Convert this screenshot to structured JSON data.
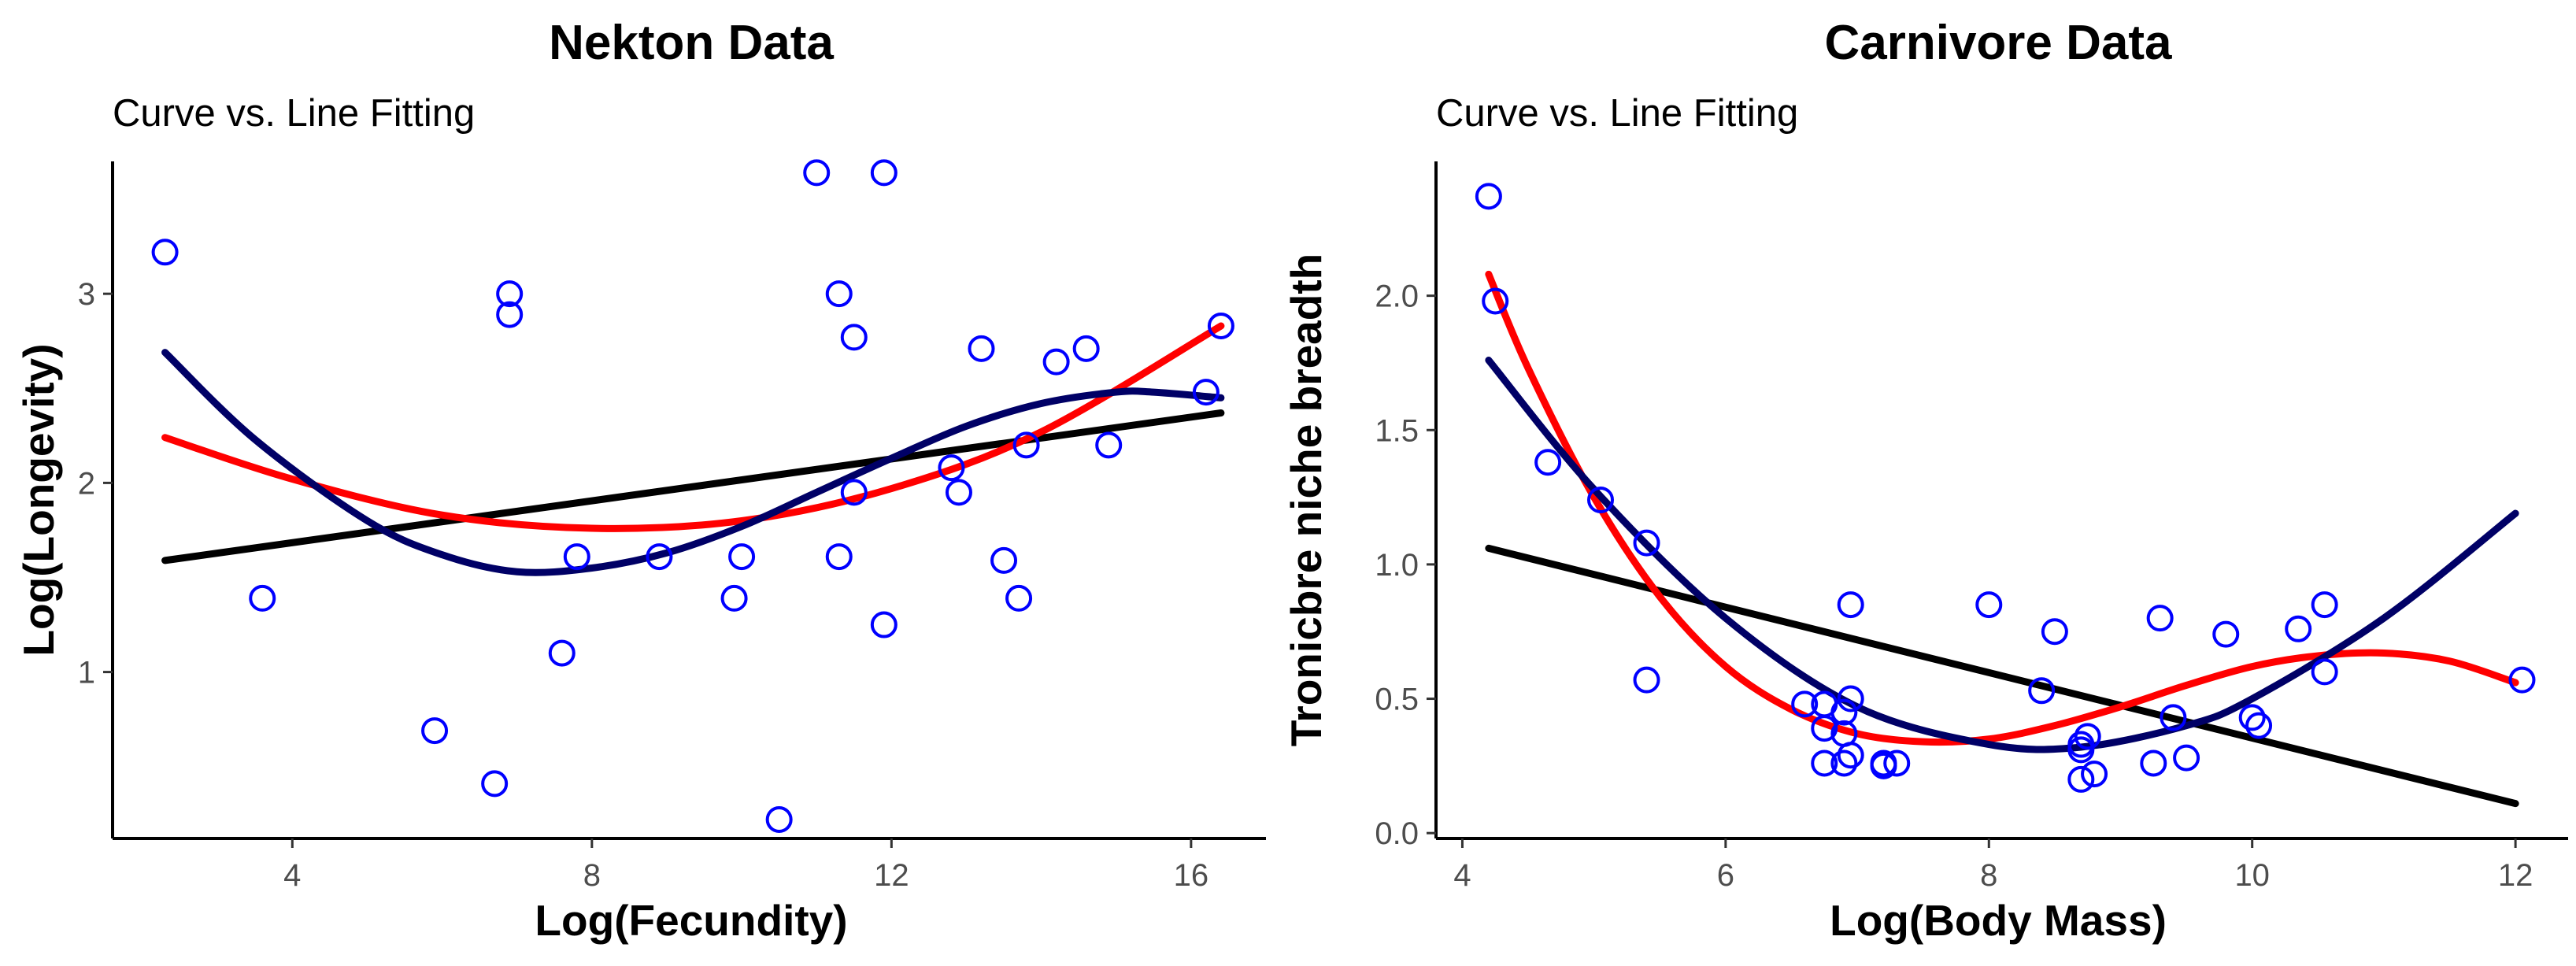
{
  "colors": {
    "points": "#0000ff",
    "linear_fit": "#000000",
    "curve_fit_red": "#ff0000",
    "curve_fit_navy": "#000066"
  },
  "chart_data": [
    {
      "type": "scatter",
      "title": "Nekton Data",
      "subtitle": "Curve vs. Line Fitting",
      "xlabel": "Log(Fecundity)",
      "ylabel": "Log(Longevity)",
      "xlim": [
        1.6,
        17.0
      ],
      "ylim": [
        0.12,
        3.7
      ],
      "xticks": [
        4,
        8,
        12,
        16
      ],
      "yticks": [
        1,
        2,
        3
      ],
      "grid": false,
      "points": {
        "x": [
          2.3,
          3.6,
          5.9,
          6.7,
          6.9,
          6.9,
          7.6,
          7.8,
          8.9,
          9.9,
          10.0,
          10.5,
          11.0,
          11.3,
          11.3,
          11.5,
          11.5,
          11.9,
          11.9,
          12.8,
          12.9,
          13.2,
          13.5,
          13.7,
          13.8,
          14.2,
          14.6,
          14.9,
          16.2,
          16.4
        ],
        "y": [
          3.22,
          1.39,
          0.69,
          0.41,
          3.0,
          2.89,
          1.1,
          1.61,
          1.61,
          1.39,
          1.61,
          0.22,
          3.64,
          3.0,
          1.61,
          1.95,
          2.77,
          3.64,
          1.25,
          2.08,
          1.95,
          2.71,
          1.59,
          1.39,
          2.2,
          2.64,
          2.71,
          2.2,
          2.48,
          2.83
        ]
      },
      "fits": [
        {
          "kind": "linear",
          "color": "#000000",
          "x": [
            2.3,
            16.4
          ],
          "y": [
            1.59,
            2.37
          ]
        },
        {
          "kind": "quadratic",
          "color": "#ff0000",
          "x": [
            2.3,
            4.0,
            6.0,
            8.0,
            10.0,
            12.0,
            14.0,
            16.4
          ],
          "y": [
            2.24,
            2.02,
            1.83,
            1.76,
            1.8,
            1.97,
            2.27,
            2.83
          ]
        },
        {
          "kind": "cubic",
          "color": "#000066",
          "x": [
            2.3,
            3.5,
            5.0,
            6.0,
            7.0,
            8.0,
            9.0,
            10.0,
            11.0,
            12.0,
            13.0,
            14.0,
            15.0,
            15.5,
            16.4
          ],
          "y": [
            2.69,
            2.23,
            1.8,
            1.62,
            1.53,
            1.55,
            1.63,
            1.77,
            1.95,
            2.13,
            2.3,
            2.42,
            2.48,
            2.48,
            2.45
          ]
        }
      ]
    },
    {
      "type": "scatter",
      "title": "Carnivore Data",
      "subtitle": "Curve vs. Line Fitting",
      "xlabel": "Log(Body Mass)",
      "ylabel": "Tronicbre niche breadth",
      "xlim": [
        3.8,
        12.4
      ],
      "ylim": [
        -0.02,
        2.5
      ],
      "xticks": [
        4,
        6,
        8,
        10,
        12
      ],
      "yticks": [
        0.0,
        0.5,
        1.0,
        1.5,
        2.0
      ],
      "ytick_labels": [
        "0.0",
        "0.5",
        "1.0",
        "1.5",
        "2.0"
      ],
      "grid": false,
      "points": {
        "x": [
          4.2,
          4.25,
          4.65,
          5.05,
          5.4,
          5.4,
          6.6,
          6.75,
          6.75,
          6.75,
          6.9,
          6.9,
          6.9,
          6.95,
          6.95,
          6.95,
          7.2,
          7.2,
          7.3,
          8.0,
          8.4,
          8.5,
          8.7,
          8.7,
          8.7,
          8.75,
          8.8,
          9.25,
          9.3,
          9.4,
          9.5,
          9.8,
          10.0,
          10.05,
          10.35,
          10.55,
          10.55,
          12.05
        ],
        "y": [
          2.37,
          1.98,
          1.38,
          1.24,
          1.08,
          0.57,
          0.48,
          0.48,
          0.39,
          0.26,
          0.45,
          0.37,
          0.26,
          0.85,
          0.5,
          0.29,
          0.26,
          0.25,
          0.26,
          0.85,
          0.53,
          0.75,
          0.33,
          0.31,
          0.2,
          0.36,
          0.22,
          0.26,
          0.8,
          0.43,
          0.28,
          0.74,
          0.43,
          0.4,
          0.76,
          0.85,
          0.6,
          0.57
        ]
      },
      "fits": [
        {
          "kind": "linear",
          "color": "#000000",
          "x": [
            4.2,
            12.0
          ],
          "y": [
            1.06,
            0.11
          ]
        },
        {
          "kind": "quartic",
          "color": "#ff0000",
          "x": [
            4.2,
            4.5,
            5.0,
            5.5,
            6.0,
            6.5,
            7.0,
            7.5,
            8.0,
            8.5,
            9.0,
            9.5,
            10.0,
            10.5,
            11.0,
            11.5,
            12.0
          ],
          "y": [
            2.08,
            1.73,
            1.25,
            0.88,
            0.62,
            0.46,
            0.37,
            0.34,
            0.35,
            0.4,
            0.47,
            0.55,
            0.62,
            0.66,
            0.67,
            0.64,
            0.56
          ]
        },
        {
          "kind": "quadratic",
          "color": "#000066",
          "x": [
            4.2,
            5.0,
            6.0,
            7.0,
            8.0,
            8.7,
            9.5,
            10.0,
            11.0,
            12.0
          ],
          "y": [
            1.76,
            1.28,
            0.8,
            0.47,
            0.33,
            0.32,
            0.4,
            0.5,
            0.8,
            1.19
          ]
        }
      ]
    }
  ]
}
